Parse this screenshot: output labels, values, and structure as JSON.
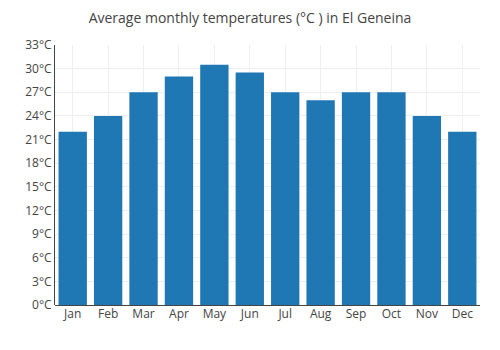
{
  "chart_data": {
    "type": "bar",
    "title": "Average monthly temperatures (°C ) in El Geneina",
    "categories": [
      "Jan",
      "Feb",
      "Mar",
      "Apr",
      "May",
      "Jun",
      "Jul",
      "Aug",
      "Sep",
      "Oct",
      "Nov",
      "Dec"
    ],
    "values": [
      22.0,
      24.0,
      27.0,
      29.0,
      30.5,
      29.5,
      27.0,
      26.0,
      27.0,
      27.0,
      24.0,
      22.0
    ],
    "ylim": [
      0,
      33
    ],
    "yticks": [
      {
        "value": 0,
        "label": "0°C"
      },
      {
        "value": 3,
        "label": "3°C"
      },
      {
        "value": 6,
        "label": "6°C"
      },
      {
        "value": 9,
        "label": "9°C"
      },
      {
        "value": 12,
        "label": "12°C"
      },
      {
        "value": 15,
        "label": "15°C"
      },
      {
        "value": 18,
        "label": "18°C"
      },
      {
        "value": 21,
        "label": "21°C"
      },
      {
        "value": 24,
        "label": "24°C"
      },
      {
        "value": 27,
        "label": "27°C"
      },
      {
        "value": 30,
        "label": "30°C"
      },
      {
        "value": 33,
        "label": "33°C"
      }
    ],
    "grid": true
  }
}
